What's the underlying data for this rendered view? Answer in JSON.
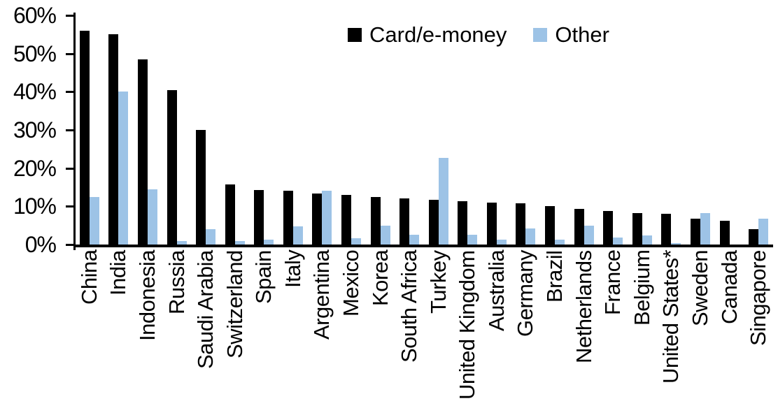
{
  "chart_data": {
    "type": "bar",
    "title": "",
    "xlabel": "",
    "ylabel": "",
    "ylim": [
      0,
      60
    ],
    "ytick_step": 10,
    "ytick_labels": [
      "0%",
      "10%",
      "20%",
      "30%",
      "40%",
      "50%",
      "60%"
    ],
    "grid": false,
    "legend_position": "top-center",
    "categories": [
      "China",
      "India",
      "Indonesia",
      "Russia",
      "Saudi Arabia",
      "Switzerland",
      "Spain",
      "Italy",
      "Argentina",
      "Mexico",
      "Korea",
      "South Africa",
      "Turkey",
      "United Kingdom",
      "Australia",
      "Germany",
      "Brazil",
      "Netherlands",
      "France",
      "Belgium",
      "United States*",
      "Sweden",
      "Canada",
      "Singapore"
    ],
    "series": [
      {
        "name": "Card/e-money",
        "color": "#000000",
        "values": [
          56,
          55,
          48.5,
          40.5,
          30,
          15.7,
          14.3,
          14,
          13.4,
          13,
          12.5,
          12,
          11.7,
          11.3,
          11,
          10.8,
          10,
          9.3,
          8.8,
          8.2,
          8,
          6.8,
          6.2,
          4
        ]
      },
      {
        "name": "Other",
        "color": "#9DC3E6",
        "values": [
          12.5,
          40,
          14.5,
          1,
          4,
          1,
          1.3,
          4.7,
          14,
          1.6,
          4.9,
          2.6,
          22.6,
          2.6,
          1.2,
          4.2,
          1.3,
          4.9,
          1.8,
          2.4,
          0.4,
          8.2,
          0,
          6.8
        ]
      }
    ]
  },
  "colors": {
    "axis": "#000000",
    "background": "#ffffff"
  }
}
